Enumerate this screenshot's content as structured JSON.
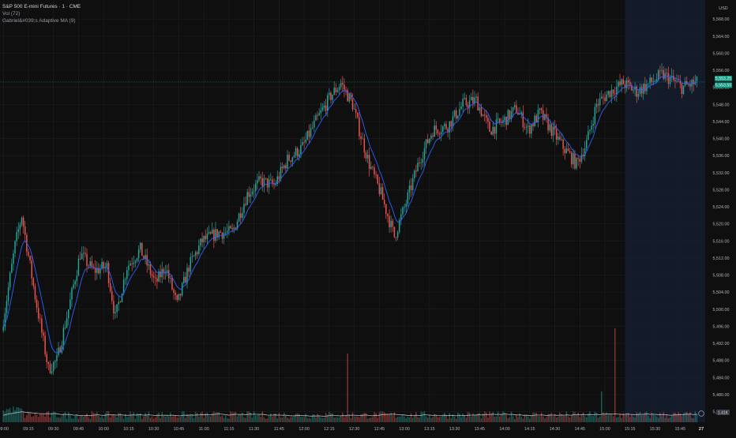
{
  "legend": {
    "symbol": "S&P 500 E-mini Futures · 1 · CME",
    "volume_label": "Vol (72)",
    "indicator_label": "Gabriel&#039;s Adaptive MA (9)"
  },
  "axis": {
    "currency": "USD",
    "current_price_label": "5,553.25",
    "ma_price_label": "5,553.50",
    "volume_value_label": "1.41K",
    "end_label": "27"
  },
  "colors": {
    "background": "#0f0f0f",
    "up": "#26a69a",
    "down": "#ef5350",
    "ma": "#2962ff",
    "grid": "#1e1f24",
    "session_shade": "#131a2a",
    "axis_text": "#b2b5be",
    "price_line": "#1e7a6f"
  },
  "chart_data": {
    "type": "candlestick",
    "interval": "1 minute",
    "ylim": [
      5475,
      5571
    ],
    "y_ticks": [
      "5,476.00",
      "5,480.00",
      "5,484.00",
      "5,488.00",
      "5,492.00",
      "5,496.00",
      "5,500.00",
      "5,504.00",
      "5,508.00",
      "5,512.00",
      "5,516.00",
      "5,520.00",
      "5,524.00",
      "5,528.00",
      "5,532.00",
      "5,536.00",
      "5,540.00",
      "5,544.00",
      "5,548.00",
      "5,552.00",
      "5,556.00",
      "5,560.00",
      "5,564.00",
      "5,568.00"
    ],
    "x_ticks": [
      "09:00",
      "09:15",
      "09:30",
      "09:45",
      "10:00",
      "10:15",
      "10:30",
      "10:45",
      "11:00",
      "11:15",
      "11:30",
      "11:45",
      "12:00",
      "12:15",
      "12:30",
      "12:45",
      "13:00",
      "13:15",
      "13:30",
      "13:45",
      "14:00",
      "14:15",
      "14:30",
      "14:45",
      "15:00",
      "15:15",
      "15:30",
      "15:45"
    ],
    "shaded_session": {
      "from": "15:12",
      "to": "16:00"
    },
    "current_price": 5553.25,
    "anchors": [
      {
        "time": "09:00",
        "price": 5495
      },
      {
        "time": "09:08",
        "price": 5515
      },
      {
        "time": "09:12",
        "price": 5522
      },
      {
        "time": "09:20",
        "price": 5503
      },
      {
        "time": "09:28",
        "price": 5486
      },
      {
        "time": "09:33",
        "price": 5488
      },
      {
        "time": "09:40",
        "price": 5500
      },
      {
        "time": "09:47",
        "price": 5513
      },
      {
        "time": "09:55",
        "price": 5509
      },
      {
        "time": "10:03",
        "price": 5510
      },
      {
        "time": "10:08",
        "price": 5498
      },
      {
        "time": "10:15",
        "price": 5510
      },
      {
        "time": "10:23",
        "price": 5514
      },
      {
        "time": "10:32",
        "price": 5506
      },
      {
        "time": "10:38",
        "price": 5510
      },
      {
        "time": "10:45",
        "price": 5501
      },
      {
        "time": "10:52",
        "price": 5510
      },
      {
        "time": "11:00",
        "price": 5516
      },
      {
        "time": "11:10",
        "price": 5518
      },
      {
        "time": "11:18",
        "price": 5518
      },
      {
        "time": "11:27",
        "price": 5527
      },
      {
        "time": "11:35",
        "price": 5530
      },
      {
        "time": "11:43",
        "price": 5529
      },
      {
        "time": "11:51",
        "price": 5535
      },
      {
        "time": "12:00",
        "price": 5538
      },
      {
        "time": "12:08",
        "price": 5544
      },
      {
        "time": "12:17",
        "price": 5550
      },
      {
        "time": "12:23",
        "price": 5553
      },
      {
        "time": "12:30",
        "price": 5548
      },
      {
        "time": "12:34",
        "price": 5542
      },
      {
        "time": "12:40",
        "price": 5534
      },
      {
        "time": "12:47",
        "price": 5527
      },
      {
        "time": "12:55",
        "price": 5517
      },
      {
        "time": "13:02",
        "price": 5525
      },
      {
        "time": "13:10",
        "price": 5535
      },
      {
        "time": "13:18",
        "price": 5542
      },
      {
        "time": "13:27",
        "price": 5543
      },
      {
        "time": "13:36",
        "price": 5548
      },
      {
        "time": "13:44",
        "price": 5549
      },
      {
        "time": "13:52",
        "price": 5542
      },
      {
        "time": "14:00",
        "price": 5544
      },
      {
        "time": "14:08",
        "price": 5547
      },
      {
        "time": "14:15",
        "price": 5542
      },
      {
        "time": "14:22",
        "price": 5546
      },
      {
        "time": "14:29",
        "price": 5542
      },
      {
        "time": "14:36",
        "price": 5538
      },
      {
        "time": "14:44",
        "price": 5534
      },
      {
        "time": "14:50",
        "price": 5539
      },
      {
        "time": "14:56",
        "price": 5548
      },
      {
        "time": "15:04",
        "price": 5551
      },
      {
        "time": "15:12",
        "price": 5553
      },
      {
        "time": "15:20",
        "price": 5551
      },
      {
        "time": "15:28",
        "price": 5553
      },
      {
        "time": "15:35",
        "price": 5555
      },
      {
        "time": "15:40",
        "price": 5554
      },
      {
        "time": "15:47",
        "price": 5552
      },
      {
        "time": "15:55",
        "price": 5553
      }
    ],
    "volume_spikes": [
      {
        "time": "12:26",
        "relative_height": 0.62
      },
      {
        "time": "15:06",
        "relative_height": 0.85
      },
      {
        "time": "14:58",
        "relative_height": 0.28
      }
    ]
  }
}
